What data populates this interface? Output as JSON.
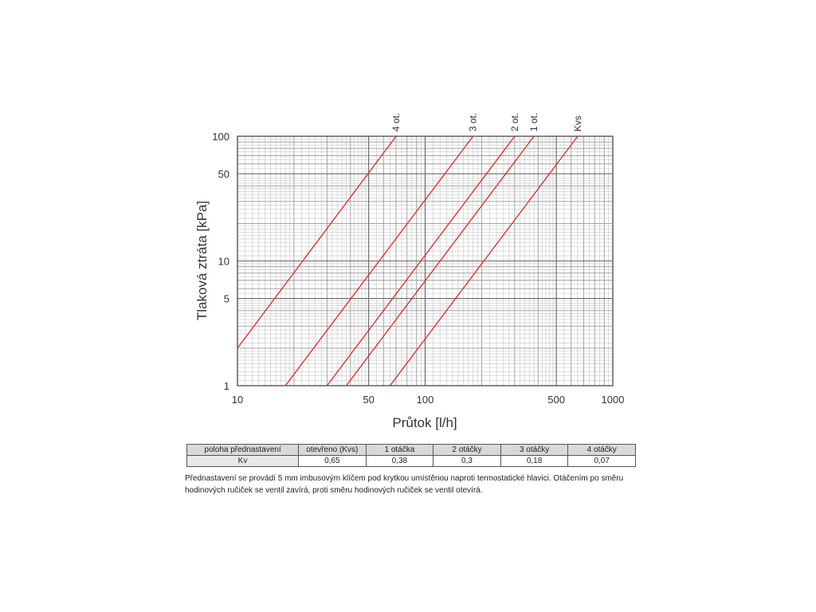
{
  "chart_data": {
    "type": "line",
    "xscale": "log",
    "yscale": "log",
    "xlim": [
      10,
      1000
    ],
    "ylim": [
      1,
      100
    ],
    "xlabel": "Průtok  [l/h]",
    "ylabel": "Tlaková ztráta  [kPa]",
    "x_ticks": [
      {
        "value": 10,
        "label": "10"
      },
      {
        "value": 50,
        "label": "50"
      },
      {
        "value": 100,
        "label": "100"
      },
      {
        "value": 500,
        "label": "500"
      },
      {
        "value": 1000,
        "label": "1000"
      }
    ],
    "y_ticks": [
      {
        "value": 1,
        "label": "1"
      },
      {
        "value": 5,
        "label": "5"
      },
      {
        "value": 10,
        "label": "10"
      },
      {
        "value": 50,
        "label": "50"
      },
      {
        "value": 100,
        "label": "100"
      }
    ],
    "grid": true,
    "line_color": "#d62a2a",
    "series": [
      {
        "name": "4 ot.",
        "kv": 0.07,
        "points": [
          {
            "x": 10,
            "y": 2.0
          },
          {
            "x": 70,
            "y": 100
          }
        ]
      },
      {
        "name": "3 ot.",
        "kv": 0.18,
        "points": [
          {
            "x": 18,
            "y": 1
          },
          {
            "x": 180,
            "y": 100
          }
        ]
      },
      {
        "name": "2 ot.",
        "kv": 0.3,
        "points": [
          {
            "x": 30,
            "y": 1
          },
          {
            "x": 300,
            "y": 100
          }
        ]
      },
      {
        "name": "1 ot.",
        "kv": 0.38,
        "points": [
          {
            "x": 38,
            "y": 1
          },
          {
            "x": 380,
            "y": 100
          }
        ]
      },
      {
        "name": "Kvs",
        "kv": 0.65,
        "points": [
          {
            "x": 65,
            "y": 1
          },
          {
            "x": 650,
            "y": 100
          }
        ]
      }
    ]
  },
  "table": {
    "headers": [
      "poloha přednastavení",
      "otevřeno (Kvs)",
      "1 otáčka",
      "2 otáčky",
      "3 otáčky",
      "4 otáčky"
    ],
    "row_label": "Kv",
    "values": [
      "0,65",
      "0,38",
      "0,3",
      "0,18",
      "0,07"
    ]
  },
  "note": "Přednastavení se provádí 5 mm imbusovým klíčem pod krytkou umístěnou naproti termostatické hlavici. Otáčením po směru hodinových ručiček se ventil zavírá, proti směru hodinových ručiček se ventil otevírá."
}
